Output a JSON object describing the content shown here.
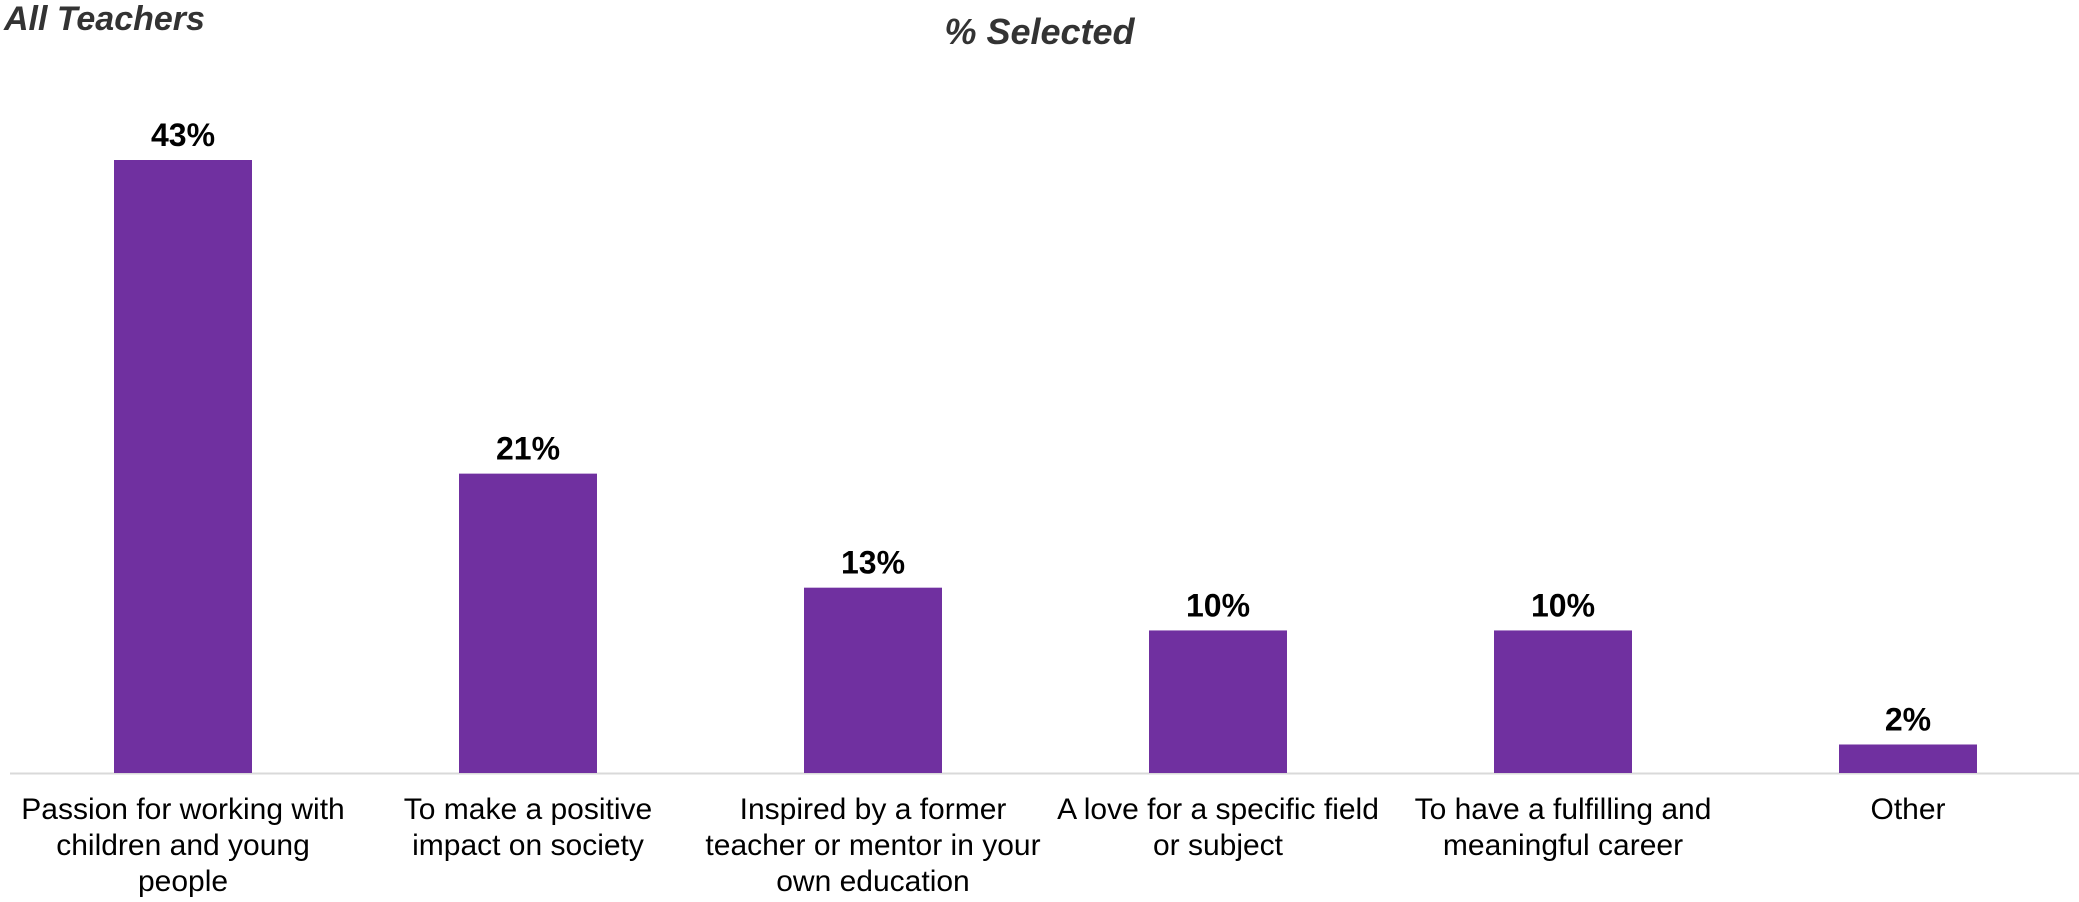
{
  "subtitle": "All Teachers",
  "chart_data": {
    "type": "bar",
    "title": "% Selected",
    "xlabel": "",
    "ylabel": "",
    "categories": [
      "Passion for working with children and young people",
      "To make a positive impact on society",
      "Inspired by a former teacher or mentor in your own education",
      "A love for a specific field or subject",
      "To have a fulfilling and meaningful career",
      "Other"
    ],
    "values": [
      43,
      21,
      13,
      10,
      10,
      2
    ],
    "value_labels": [
      "43%",
      "21%",
      "13%",
      "10%",
      "10%",
      "2%"
    ],
    "ylim": [
      0,
      43
    ],
    "grid": false,
    "legend": "none",
    "bar_color": "#7030A0",
    "axis_color": "#D9D9D9"
  }
}
